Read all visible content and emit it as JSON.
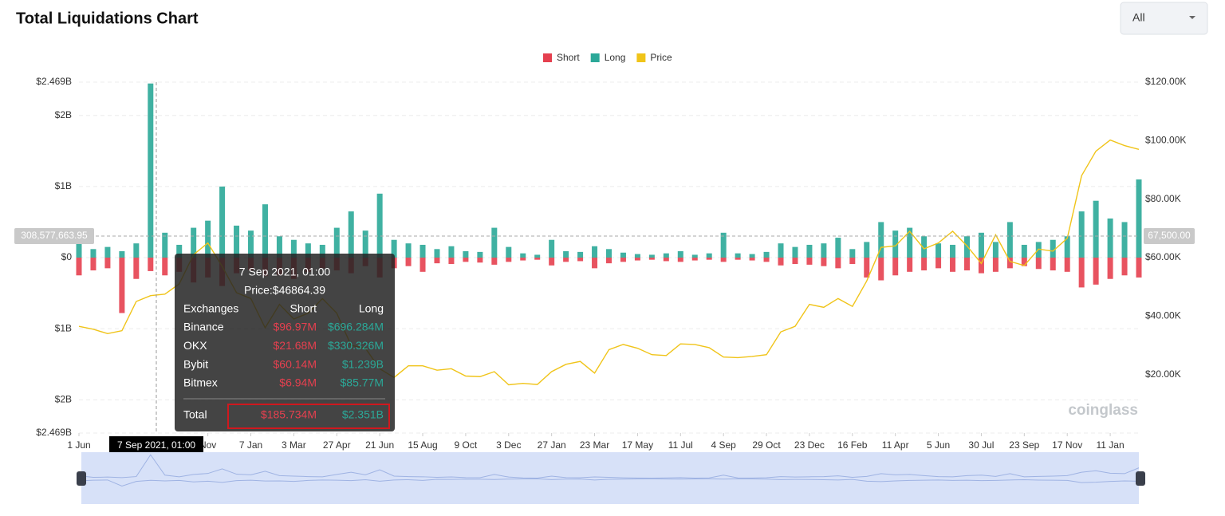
{
  "header": {
    "title": "Total Liquidations Chart",
    "filter": "All"
  },
  "chart_data": {
    "type": "bar-line",
    "categories": [
      "1 Jun",
      null,
      null,
      null,
      null,
      null,
      null,
      null,
      null,
      "Nov",
      null,
      null,
      "7 Jan",
      null,
      null,
      "3 Mar",
      null,
      null,
      "27 Apr",
      null,
      null,
      "21 Jun",
      null,
      null,
      "15 Aug",
      null,
      null,
      "9 Oct",
      null,
      null,
      "3 Dec",
      null,
      null,
      "27 Jan",
      null,
      null,
      "23 Mar",
      null,
      null,
      "17 May",
      null,
      null,
      "11 Jul",
      null,
      null,
      "4 Sep",
      null,
      null,
      "29 Oct",
      null,
      null,
      "23 Dec",
      null,
      null,
      "16 Feb",
      null,
      null,
      "11 Apr",
      null,
      null,
      "5 Jun",
      null,
      null,
      "30 Jul",
      null,
      null,
      "23 Sep",
      null,
      null,
      "17 Nov",
      null,
      null,
      "11 Jan",
      null,
      null
    ],
    "series": [
      {
        "name": "Short",
        "color": "#e5404f",
        "values": [
          -250000000,
          -180000000,
          -150000000,
          -780000000,
          -300000000,
          -190000000,
          -250000000,
          -200000000,
          -350000000,
          -280000000,
          -400000000,
          -220000000,
          -180000000,
          -260000000,
          -250000000,
          -300000000,
          -200000000,
          -150000000,
          -180000000,
          -220000000,
          -120000000,
          -280000000,
          -150000000,
          -120000000,
          -200000000,
          -80000000,
          -90000000,
          -60000000,
          -70000000,
          -100000000,
          -60000000,
          -40000000,
          -30000000,
          -110000000,
          -60000000,
          -50000000,
          -150000000,
          -80000000,
          -60000000,
          -40000000,
          -30000000,
          -50000000,
          -60000000,
          -40000000,
          -30000000,
          -60000000,
          -30000000,
          -40000000,
          -60000000,
          -110000000,
          -90000000,
          -100000000,
          -120000000,
          -150000000,
          -90000000,
          -280000000,
          -320000000,
          -250000000,
          -200000000,
          -180000000,
          -150000000,
          -200000000,
          -180000000,
          -220000000,
          -200000000,
          -150000000,
          -120000000,
          -160000000,
          -180000000,
          -200000000,
          -420000000,
          -380000000,
          -300000000,
          -250000000,
          -280000000
        ]
      },
      {
        "name": "Long",
        "color": "#2ba898",
        "values": [
          280000000,
          120000000,
          150000000,
          90000000,
          200000000,
          2450000000,
          350000000,
          180000000,
          420000000,
          520000000,
          1000000000,
          450000000,
          380000000,
          750000000,
          300000000,
          250000000,
          200000000,
          180000000,
          420000000,
          650000000,
          380000000,
          900000000,
          250000000,
          200000000,
          180000000,
          120000000,
          160000000,
          90000000,
          80000000,
          420000000,
          150000000,
          60000000,
          40000000,
          250000000,
          90000000,
          80000000,
          160000000,
          120000000,
          70000000,
          50000000,
          40000000,
          60000000,
          90000000,
          40000000,
          60000000,
          350000000,
          60000000,
          50000000,
          80000000,
          200000000,
          150000000,
          180000000,
          200000000,
          280000000,
          120000000,
          220000000,
          500000000,
          380000000,
          420000000,
          300000000,
          200000000,
          180000000,
          300000000,
          350000000,
          220000000,
          500000000,
          180000000,
          220000000,
          250000000,
          300000000,
          650000000,
          800000000,
          550000000,
          500000000,
          1100000000
        ]
      },
      {
        "name": "Price",
        "color": "#f0c419",
        "axis": "y2",
        "values": [
          36500,
          35500,
          34000,
          35000,
          45000,
          47000,
          47500,
          51000,
          61000,
          65000,
          57000,
          48000,
          46000,
          36000,
          44000,
          39000,
          41000,
          46000,
          41000,
          30000,
          29000,
          22000,
          19000,
          23000,
          23000,
          21500,
          22000,
          19500,
          19300,
          21000,
          16500,
          17000,
          16600,
          21000,
          23500,
          24500,
          20500,
          28500,
          30300,
          29000,
          26800,
          26500,
          30500,
          30300,
          29200,
          26000,
          25800,
          26200,
          26800,
          34600,
          36500,
          44000,
          43000,
          46000,
          43300,
          52000,
          63500,
          64000,
          69000,
          63000,
          65000,
          69000,
          64000,
          58000,
          67800,
          58700,
          57300,
          62900,
          62200,
          66600,
          88000,
          96400,
          100200,
          98300,
          97000
        ]
      }
    ],
    "ylim": [
      -2469000000,
      2469000000
    ],
    "yticks": [
      {
        "value": 2469000000,
        "label": "$2.469B"
      },
      {
        "value": 2000000000,
        "label": "$2B"
      },
      {
        "value": 1000000000,
        "label": "$1B"
      },
      {
        "value": 0,
        "label": "$0"
      },
      {
        "value": -1000000000,
        "label": "$1B"
      },
      {
        "value": -2000000000,
        "label": "$2B"
      },
      {
        "value": -2469000000,
        "label": "$2.469B"
      }
    ],
    "y2lim": [
      0,
      120000
    ],
    "y2ticks": [
      {
        "value": 120000,
        "label": "$120.00K"
      },
      {
        "value": 100000,
        "label": "$100.00K"
      },
      {
        "value": 80000,
        "label": "$80.00K"
      },
      {
        "value": 60000,
        "label": "$60.00K"
      },
      {
        "value": 40000,
        "label": "$40.00K"
      },
      {
        "value": 20000,
        "label": "$20.00K"
      }
    ],
    "grid": true,
    "legend": "top",
    "crosshair": {
      "x_label": "7 Sep 2021, 01:00",
      "y_label": "308,577,663.95",
      "y2_label": "67,500.00"
    },
    "watermark": "coinglass"
  },
  "tooltip": {
    "title": "7 Sep 2021, 01:00",
    "price": "Price:$46864.39",
    "columns": [
      "Exchanges",
      "Short",
      "Long"
    ],
    "rows": [
      [
        "Binance",
        "$96.97M",
        "$696.284M"
      ],
      [
        "OKX",
        "$21.68M",
        "$330.326M"
      ],
      [
        "Bybit",
        "$60.14M",
        "$1.239B"
      ],
      [
        "Bitmex",
        "$6.94M",
        "$85.77M"
      ]
    ],
    "total": [
      "Total",
      "$185.734M",
      "$2.351B"
    ]
  }
}
